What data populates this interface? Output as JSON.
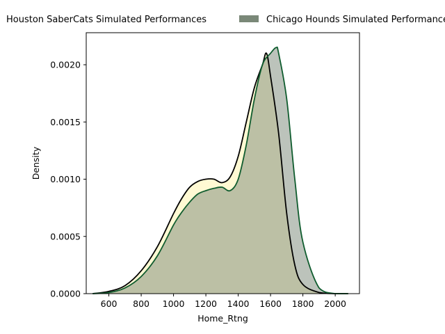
{
  "chart_data": {
    "type": "area",
    "xlabel": "Home_Rtng",
    "ylabel": "Density",
    "xlim": [
      460,
      2150
    ],
    "ylim": [
      0,
      0.00228
    ],
    "x_ticks": [
      600,
      800,
      1000,
      1200,
      1400,
      1600,
      1800,
      2000
    ],
    "y_ticks": [
      "0.0000",
      "0.0005",
      "0.0010",
      "0.0015",
      "0.0020"
    ],
    "legend_position": "top",
    "series": [
      {
        "name": "Houston SaberCats Simulated Performances",
        "fill_color": "#fff7c4",
        "line_color": "#000000",
        "x": [
          500,
          600,
          700,
          800,
          900,
          1000,
          1050,
          1100,
          1150,
          1200,
          1250,
          1300,
          1350,
          1400,
          1450,
          1500,
          1550,
          1575,
          1600,
          1650,
          1700,
          1750,
          1800,
          1900,
          2000,
          2080
        ],
        "y": [
          0.0,
          2e-05,
          7e-05,
          0.0002,
          0.00041,
          0.0007,
          0.00083,
          0.00093,
          0.00098,
          0.001,
          0.001,
          0.00097,
          0.00102,
          0.0012,
          0.0015,
          0.0018,
          0.002,
          0.0021,
          0.0019,
          0.0014,
          0.0007,
          0.00025,
          8e-05,
          1e-05,
          0.0,
          0.0
        ]
      },
      {
        "name": "Chicago Hounds Simulated Performances",
        "fill_color": "#7a8878",
        "line_color": "#0f5c2e",
        "x": [
          500,
          600,
          700,
          800,
          900,
          1000,
          1050,
          1100,
          1150,
          1200,
          1250,
          1300,
          1350,
          1400,
          1450,
          1500,
          1550,
          1600,
          1635,
          1650,
          1700,
          1750,
          1800,
          1900,
          2000,
          2080
        ],
        "y": [
          0.0,
          1e-05,
          5e-05,
          0.00015,
          0.00033,
          0.0006,
          0.00071,
          0.0008,
          0.00087,
          0.0009,
          0.00092,
          0.00093,
          0.0009,
          0.001,
          0.0013,
          0.0017,
          0.002,
          0.0021,
          0.00215,
          0.0021,
          0.0017,
          0.001,
          0.00045,
          5e-05,
          0.0,
          0.0
        ]
      }
    ]
  }
}
